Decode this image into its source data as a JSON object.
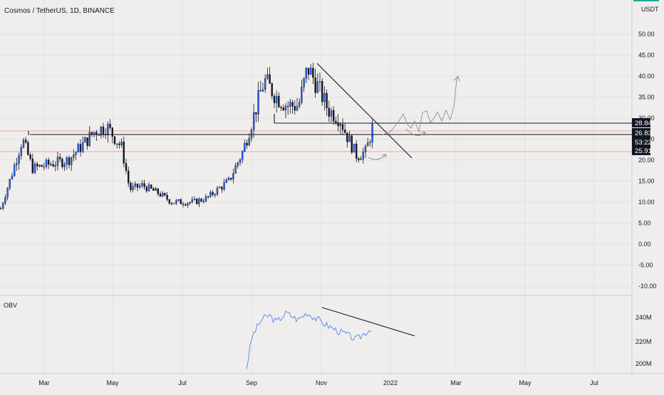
{
  "header": {
    "title": "Cosmos / TetherUS, 1D, BINANCE"
  },
  "price_axis": {
    "currency": "USDT",
    "ticks": [
      "50.00",
      "45.00",
      "40.00",
      "35.00",
      "30.00",
      "25.00",
      "20.00",
      "15.00",
      "10.00",
      "5.00",
      "0.00",
      "-5.00",
      "-10.00"
    ],
    "labels": [
      "28.84",
      "26.83",
      "53:22",
      "25.91"
    ]
  },
  "time_axis": {
    "ticks": [
      "Mar",
      "May",
      "Jul",
      "Sep",
      "Nov",
      "2022",
      "Mar",
      "May",
      "Jul"
    ]
  },
  "obv": {
    "label": "OBV",
    "ticks": [
      "240M",
      "220M",
      "200M"
    ]
  },
  "colors": {
    "up": "#2962ff",
    "down": "#131722",
    "obv_line": "#5b8ef0",
    "grid": "#e2e0de",
    "red_line": "#f2a0a0"
  },
  "chart_data": [
    {
      "type": "candlestick",
      "title": "Cosmos / TetherUS, 1D, BINANCE",
      "x": [
        "2021-02-01",
        "2021-02-10",
        "2021-02-20",
        "2021-03-01",
        "2021-03-15",
        "2021-04-01",
        "2021-04-15",
        "2021-04-25",
        "2021-05-05",
        "2021-05-18",
        "2021-05-25",
        "2021-06-05",
        "2021-06-20",
        "2021-07-01",
        "2021-07-20",
        "2021-08-01",
        "2021-08-10",
        "2021-08-20",
        "2021-09-01",
        "2021-09-10",
        "2021-09-20",
        "2021-10-01",
        "2021-10-10",
        "2021-10-20",
        "2021-10-28",
        "2021-11-05",
        "2021-11-15",
        "2021-11-25",
        "2021-12-01",
        "2021-12-10",
        "2021-12-18",
        "2021-12-24"
      ],
      "close": [
        8.5,
        16,
        25,
        18,
        19,
        20,
        24,
        27,
        28,
        23,
        13,
        14,
        12,
        10,
        10,
        11,
        13,
        15,
        22,
        30,
        39,
        35,
        33,
        33,
        42,
        38,
        32,
        30,
        26,
        21,
        22,
        28
      ],
      "ylim": [
        -12,
        55
      ],
      "levels": [
        28.84,
        26.83,
        25.91
      ],
      "grid": true
    },
    {
      "type": "line",
      "title": "OBV",
      "x": [
        "2021-09-05",
        "2021-09-10",
        "2021-09-18",
        "2021-09-25",
        "2021-10-01",
        "2021-10-10",
        "2021-10-20",
        "2021-10-28",
        "2021-11-05",
        "2021-11-15",
        "2021-11-25",
        "2021-12-01",
        "2021-12-10",
        "2021-12-18",
        "2021-12-24"
      ],
      "values": [
        197,
        224,
        238,
        242,
        236,
        244,
        238,
        244,
        239,
        233,
        228,
        226,
        221,
        227,
        231
      ],
      "ylim": [
        195,
        250
      ]
    }
  ]
}
